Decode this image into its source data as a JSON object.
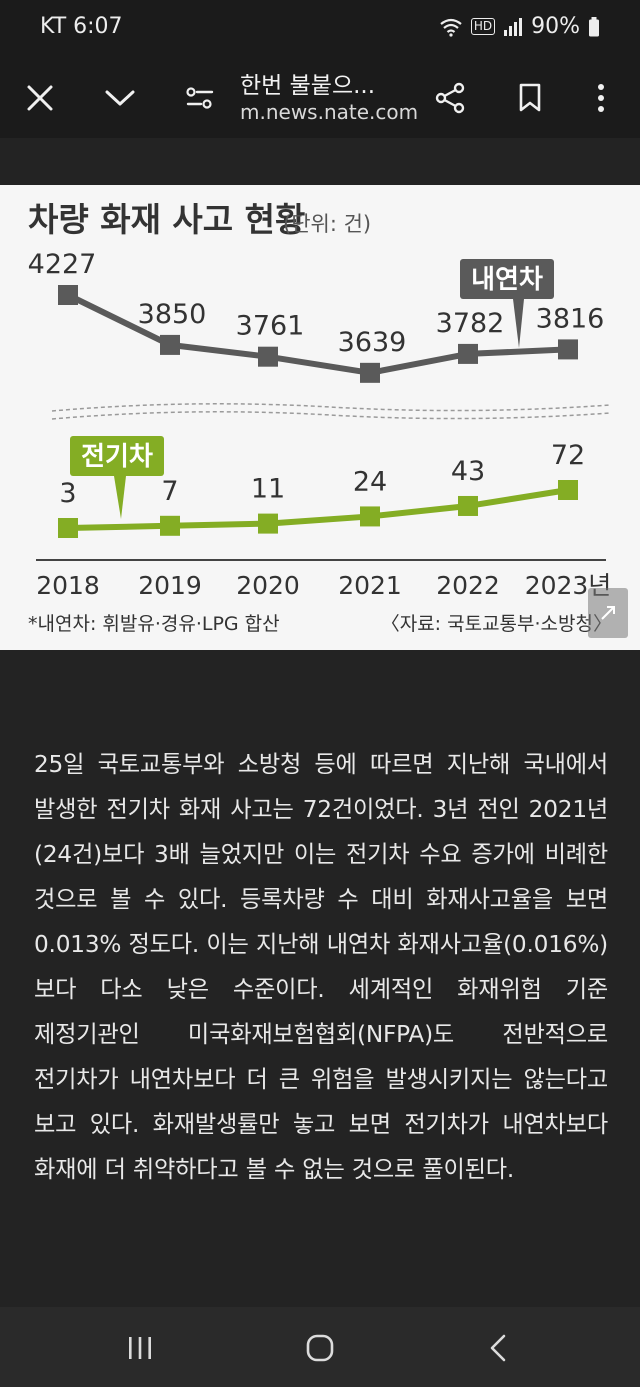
{
  "status": {
    "carrier_time": "KT 6:07",
    "network": "HD",
    "battery": "90%"
  },
  "toolbar": {
    "title": "한번 불붙으...",
    "url": "m.news.nate.com"
  },
  "figure": {
    "title": "차량 화재 사고 현황",
    "unit": "(단위: 건)",
    "footnote": "*내연차: 휘발유·경유·LPG 합산",
    "source": "〈자료: 국토교통부·소방청〉"
  },
  "chart_data": {
    "type": "line",
    "categories": [
      "2018",
      "2019",
      "2020",
      "2021",
      "2022",
      "2023년"
    ],
    "series": [
      {
        "name": "내연차",
        "values": [
          4227,
          3850,
          3761,
          3639,
          3782,
          3816
        ],
        "color": "#5a5a5a"
      },
      {
        "name": "전기차",
        "values": [
          3,
          7,
          11,
          24,
          43,
          72
        ],
        "color": "#84ad24"
      }
    ],
    "axis_break": true,
    "grid": false
  },
  "article": {
    "body": "25일 국토교통부와 소방청 등에 따르면 지난해 국내에서 발생한 전기차 화재 사고는 72건이었다. 3년 전인 2021년(24건)보다 3배 늘었지만 이는 전기차 수요 증가에 비례한 것으로 볼 수 있다. 등록차량 수 대비 화재사고율을 보면 0.013% 정도다. 이는 지난해 내연차 화재사고율(0.016%)보다 다소 낮은 수준이다. 세계적인 화재위험 기준 제정기관인 미국화재보험협회(NFPA)도 전반적으로 전기차가 내연차보다 더 큰 위험을 발생시키지는 않는다고 보고 있다. 화재발생률만 놓고 보면 전기차가 내연차보다 화재에 더 취약하다고 볼 수 없는 것으로 풀이된다."
  },
  "icons": {
    "close": "close-icon",
    "collapse": "chevron-down-icon",
    "settings": "tune-icon",
    "share": "share-icon",
    "bookmark": "bookmark-icon",
    "more": "more-vert-icon",
    "expand": "expand-icon",
    "recents": "recents-icon",
    "home": "home-icon",
    "back": "back-icon"
  }
}
